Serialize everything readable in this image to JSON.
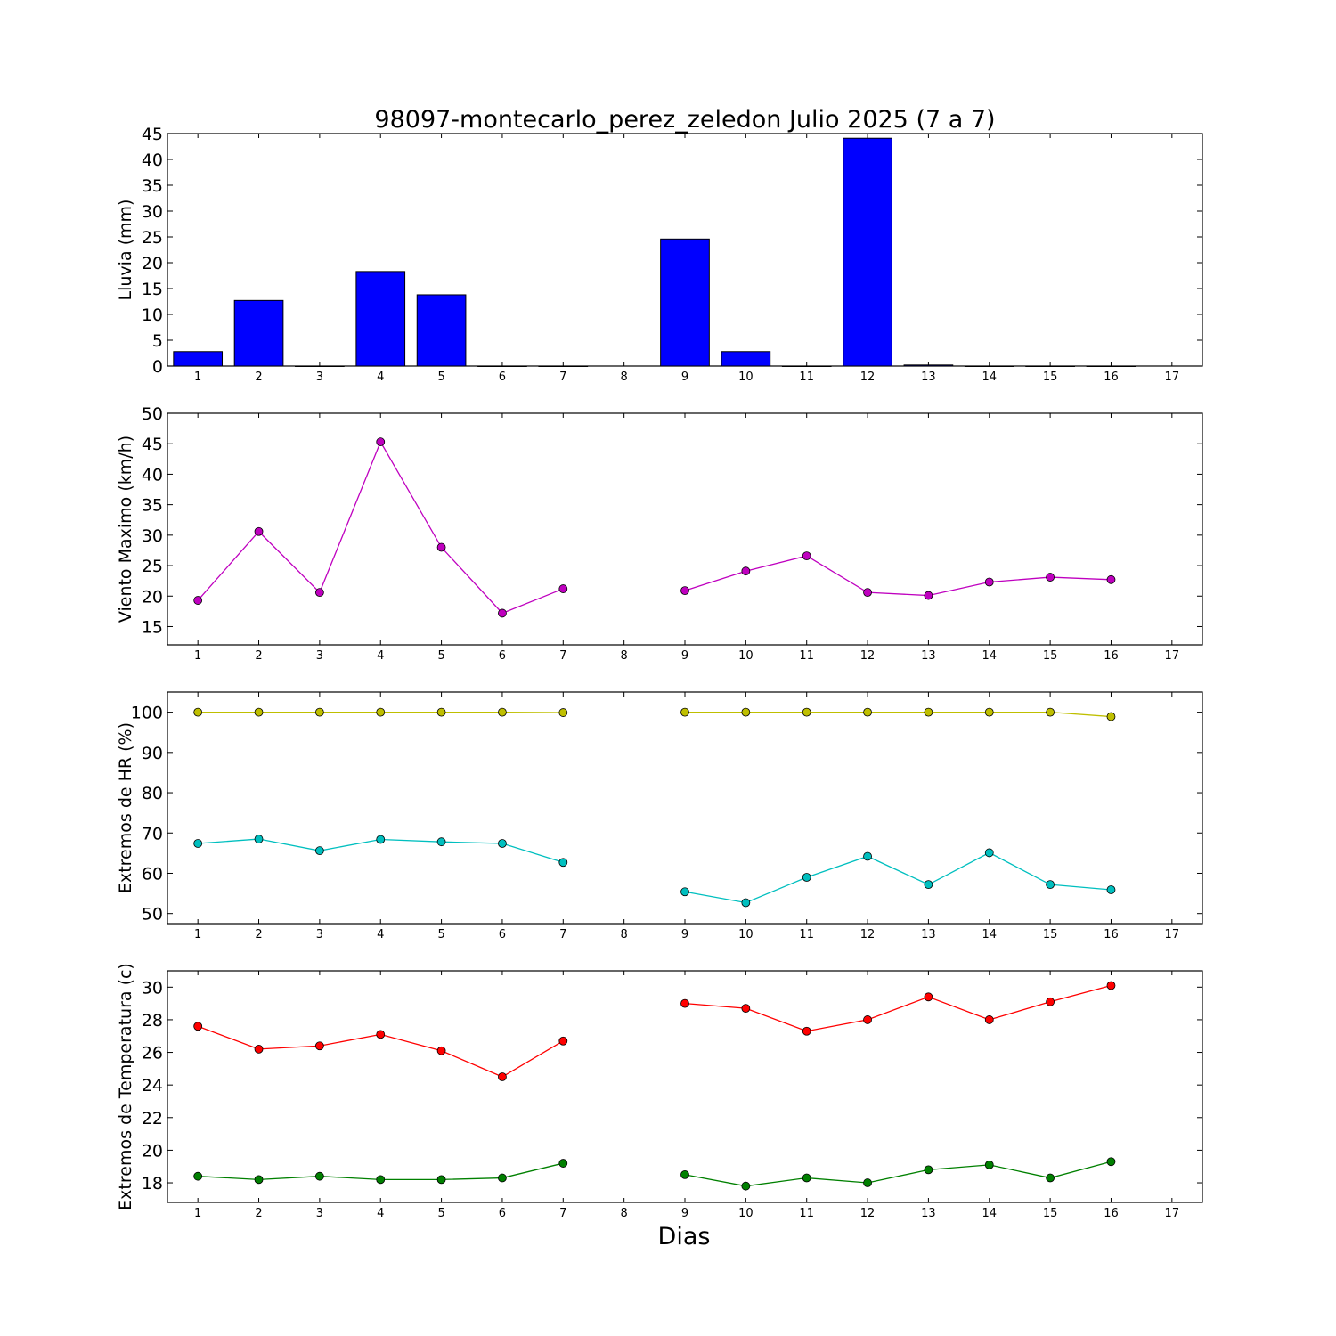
{
  "figure": {
    "title": "98097-montecarlo_perez_zeledon Julio 2025  (7 a 7)",
    "xlabel": "Dias"
  },
  "chart_data": [
    {
      "type": "bar",
      "ylabel": "Lluvia (mm)",
      "xlim": [
        0.5,
        17.5
      ],
      "ylim": [
        0,
        45
      ],
      "yticks": [
        0,
        5,
        10,
        15,
        20,
        25,
        30,
        35,
        40,
        45
      ],
      "xticks": [
        1,
        2,
        3,
        4,
        5,
        6,
        7,
        8,
        9,
        10,
        11,
        12,
        13,
        14,
        15,
        16,
        17
      ],
      "series": [
        {
          "color": "#0000ff",
          "x": [
            1,
            2,
            3,
            4,
            5,
            6,
            7,
            8,
            9,
            10,
            11,
            12,
            13,
            14,
            15,
            16,
            17
          ],
          "values": [
            2.8,
            12.7,
            0,
            18.3,
            13.8,
            0,
            0,
            null,
            24.6,
            2.8,
            0,
            44.1,
            0.2,
            0,
            0,
            0,
            null
          ]
        }
      ]
    },
    {
      "type": "line",
      "ylabel": "Viento Maximo (km/h)",
      "xlim": [
        0.5,
        17.5
      ],
      "ylim": [
        12,
        50
      ],
      "yticks": [
        15,
        20,
        25,
        30,
        35,
        40,
        45,
        50
      ],
      "xticks": [
        1,
        2,
        3,
        4,
        5,
        6,
        7,
        8,
        9,
        10,
        11,
        12,
        13,
        14,
        15,
        16,
        17
      ],
      "series": [
        {
          "color": "#bf00bf",
          "x": [
            1,
            2,
            3,
            4,
            5,
            6,
            7,
            8,
            9,
            10,
            11,
            12,
            13,
            14,
            15,
            16
          ],
          "values": [
            19.3,
            30.6,
            20.6,
            45.3,
            28.0,
            17.2,
            21.2,
            null,
            20.9,
            24.1,
            26.6,
            20.6,
            20.1,
            22.3,
            23.1,
            22.7
          ]
        }
      ]
    },
    {
      "type": "line",
      "ylabel": "Extremos de HR (%)",
      "xlim": [
        0.5,
        17.5
      ],
      "ylim": [
        47.5,
        105
      ],
      "yticks": [
        50,
        60,
        70,
        80,
        90,
        100
      ],
      "xticks": [
        1,
        2,
        3,
        4,
        5,
        6,
        7,
        8,
        9,
        10,
        11,
        12,
        13,
        14,
        15,
        16,
        17
      ],
      "series": [
        {
          "color": "#bfbf00",
          "x": [
            1,
            2,
            3,
            4,
            5,
            6,
            7,
            8,
            9,
            10,
            11,
            12,
            13,
            14,
            15,
            16
          ],
          "values": [
            100,
            100,
            100,
            100,
            100,
            100,
            99.9,
            null,
            100,
            100,
            100,
            100,
            100,
            100,
            100,
            98.9
          ]
        },
        {
          "color": "#00bfbf",
          "x": [
            1,
            2,
            3,
            4,
            5,
            6,
            7,
            8,
            9,
            10,
            11,
            12,
            13,
            14,
            15,
            16
          ],
          "values": [
            67.4,
            68.5,
            65.6,
            68.4,
            67.8,
            67.4,
            62.7,
            null,
            55.4,
            52.7,
            59.0,
            64.2,
            57.2,
            65.1,
            57.2,
            55.9
          ]
        }
      ]
    },
    {
      "type": "line",
      "ylabel": "Extremos de Temperatura (c)",
      "xlim": [
        0.5,
        17.5
      ],
      "ylim": [
        16.8,
        31.0
      ],
      "yticks": [
        18,
        20,
        22,
        24,
        26,
        28,
        30
      ],
      "xticks": [
        1,
        2,
        3,
        4,
        5,
        6,
        7,
        8,
        9,
        10,
        11,
        12,
        13,
        14,
        15,
        16,
        17
      ],
      "series": [
        {
          "color": "#ff0000",
          "x": [
            1,
            2,
            3,
            4,
            5,
            6,
            7,
            8,
            9,
            10,
            11,
            12,
            13,
            14,
            15,
            16
          ],
          "values": [
            27.6,
            26.2,
            26.4,
            27.1,
            26.1,
            24.5,
            26.7,
            null,
            29.0,
            28.7,
            27.3,
            28.0,
            29.4,
            28.0,
            29.1,
            30.1
          ]
        },
        {
          "color": "#008000",
          "x": [
            1,
            2,
            3,
            4,
            5,
            6,
            7,
            8,
            9,
            10,
            11,
            12,
            13,
            14,
            15,
            16
          ],
          "values": [
            18.4,
            18.2,
            18.4,
            18.2,
            18.2,
            18.3,
            19.2,
            null,
            18.5,
            17.8,
            18.3,
            18.0,
            18.8,
            19.1,
            18.3,
            19.3
          ]
        }
      ]
    }
  ]
}
